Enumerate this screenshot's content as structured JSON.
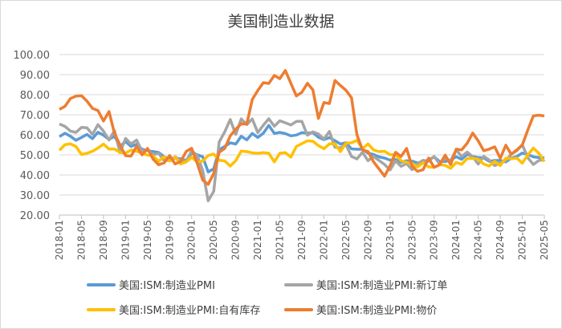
{
  "chart_data": {
    "type": "line",
    "title": "美国制造业数据",
    "ylim": [
      20,
      100
    ],
    "yticks": [
      "20.00",
      "30.00",
      "40.00",
      "50.00",
      "60.00",
      "70.00",
      "80.00",
      "90.00",
      "100.00"
    ],
    "grid": true,
    "legend_position": "bottom",
    "x_labels": [
      "2018-01",
      "2018-05",
      "2018-09",
      "2019-01",
      "2019-05",
      "2019-09",
      "2020-01",
      "2020-05",
      "2020-09",
      "2021-01",
      "2021-05",
      "2021-09",
      "2022-01",
      "2022-05",
      "2022-09",
      "2023-01",
      "2023-05",
      "2023-09",
      "2024-01",
      "2024-05",
      "2024-09",
      "2025-01",
      "2025-05"
    ],
    "x_start": "2018-01",
    "x_end": "2025-05",
    "series": [
      {
        "name": "美国:ISM:制造业PMI",
        "color": "#5B9BD5",
        "values": [
          59.1,
          60.8,
          59.3,
          57.3,
          58.7,
          60.2,
          58.1,
          61.3,
          59.8,
          57.7,
          59.3,
          54.3,
          56.6,
          54.2,
          55.3,
          52.8,
          52.1,
          51.7,
          51.2,
          49.1,
          47.8,
          48.3,
          48.1,
          47.2,
          50.9,
          50.1,
          49.1,
          41.5,
          43.1,
          52.6,
          54.2,
          56.0,
          55.4,
          59.3,
          57.5,
          60.7,
          58.7,
          60.8,
          64.7,
          60.7,
          61.2,
          60.6,
          59.5,
          59.9,
          61.1,
          60.8,
          61.1,
          58.8,
          57.6,
          58.6,
          57.1,
          55.4,
          56.1,
          53.0,
          52.8,
          52.8,
          50.9,
          50.2,
          49.0,
          48.4,
          47.4,
          47.7,
          46.3,
          47.1,
          46.9,
          46.0,
          46.4,
          47.6,
          49.0,
          46.7,
          46.7,
          47.4,
          49.1,
          47.8,
          50.3,
          49.2,
          48.7,
          48.5,
          46.8,
          47.2,
          47.2,
          46.5,
          48.4,
          49.2,
          50.9,
          50.3,
          49.0,
          48.7,
          48.5
        ]
      },
      {
        "name": "美国:ISM:制造业PMI:新订单",
        "color": "#A5A5A5",
        "values": [
          65.4,
          64.2,
          61.9,
          61.2,
          63.7,
          63.5,
          60.2,
          65.1,
          61.8,
          57.4,
          62.1,
          51.1,
          58.2,
          55.5,
          57.4,
          51.7,
          52.7,
          50.0,
          50.8,
          47.2,
          47.3,
          49.1,
          47.2,
          46.8,
          52.0,
          49.8,
          42.2,
          27.1,
          31.8,
          56.4,
          61.5,
          67.6,
          60.2,
          67.9,
          65.1,
          67.9,
          61.1,
          64.8,
          68.0,
          64.3,
          67.0,
          66.0,
          64.9,
          66.7,
          66.7,
          59.8,
          61.5,
          60.4,
          57.9,
          61.7,
          53.8,
          53.5,
          55.1,
          49.2,
          48.0,
          51.3,
          47.1,
          49.2,
          47.2,
          45.2,
          42.5,
          47.0,
          44.3,
          45.7,
          42.6,
          45.6,
          47.3,
          46.8,
          49.2,
          45.5,
          48.3,
          47.1,
          52.5,
          49.2,
          51.4,
          49.1,
          45.4,
          49.3,
          47.4,
          44.6,
          46.1,
          47.1,
          50.4,
          52.1,
          55.1,
          48.6,
          45.2,
          47.2,
          47.6
        ]
      },
      {
        "name": "美国:ISM:制造业PMI:自有库存",
        "color": "#FFC000",
        "values": [
          52.3,
          55.1,
          55.5,
          54.2,
          50.2,
          50.8,
          51.8,
          53.4,
          55.4,
          52.9,
          52.9,
          51.2,
          50.9,
          52.4,
          51.8,
          50.9,
          49.9,
          49.5,
          46.8,
          49.1,
          46.9,
          48.9,
          45.5,
          46.5,
          48.8,
          46.5,
          46.9,
          49.7,
          50.4,
          47.3,
          47.0,
          44.4,
          47.1,
          51.9,
          51.6,
          51.0,
          50.8,
          51.1,
          50.8,
          46.5,
          50.8,
          51.1,
          48.9,
          54.2,
          55.6,
          57.0,
          56.8,
          54.6,
          53.1,
          55.5,
          55.5,
          51.6,
          55.9,
          56.0,
          57.3,
          53.1,
          55.5,
          52.5,
          51.6,
          51.8,
          50.1,
          50.1,
          47.1,
          46.3,
          45.8,
          44.0,
          46.1,
          44.0,
          43.8,
          45.1,
          44.8,
          43.3,
          46.2,
          45.3,
          48.2,
          48.2,
          47.9,
          45.4,
          44.5,
          46.8,
          44.7,
          48.4,
          48.1,
          48.4,
          45.9,
          49.9,
          53.4,
          50.8,
          46.7
        ]
      },
      {
        "name": "美国:ISM:制造业PMI:物价",
        "color": "#ED7D31",
        "values": [
          72.7,
          74.2,
          78.1,
          79.3,
          79.5,
          76.8,
          73.2,
          72.1,
          66.9,
          71.6,
          60.7,
          54.9,
          49.6,
          49.4,
          54.3,
          50.0,
          53.2,
          47.9,
          45.1,
          46.0,
          49.7,
          45.5,
          46.7,
          51.7,
          53.3,
          45.9,
          37.4,
          35.3,
          40.8,
          51.3,
          53.2,
          59.5,
          62.8,
          65.5,
          65.4,
          77.6,
          82.1,
          86.0,
          85.6,
          89.6,
          88.0,
          92.1,
          85.7,
          79.4,
          81.2,
          85.7,
          82.4,
          68.2,
          76.1,
          75.6,
          87.1,
          84.6,
          82.2,
          78.5,
          60.0,
          52.5,
          51.7,
          46.6,
          43.0,
          39.4,
          44.5,
          51.3,
          49.2,
          53.2,
          44.2,
          41.8,
          42.6,
          48.4,
          43.8,
          45.1,
          49.9,
          45.2,
          52.9,
          52.5,
          55.8,
          60.9,
          57.0,
          52.1,
          52.9,
          54.0,
          48.3,
          54.8,
          50.3,
          52.5,
          54.9,
          62.4,
          69.4,
          69.8,
          69.4
        ]
      }
    ]
  }
}
